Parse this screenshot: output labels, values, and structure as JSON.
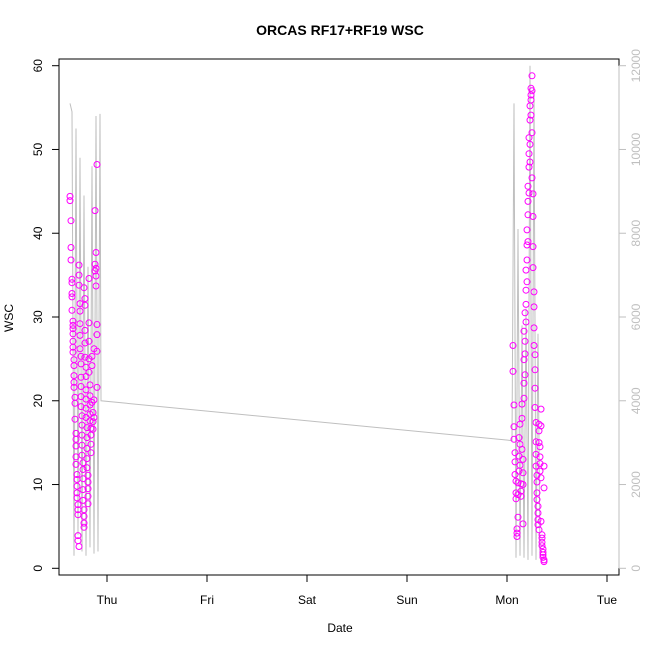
{
  "chart_data": {
    "type": "scatter",
    "title": "ORCAS RF17+RF19 WSC",
    "xlabel": "Date",
    "ylabel": "WSC",
    "x_tick_labels": [
      "Thu",
      "Fri",
      "Sat",
      "Sun",
      "Mon",
      "Tue"
    ],
    "x_tick_values": [
      0,
      1,
      2,
      3,
      4,
      5
    ],
    "xlim": [
      -0.48,
      5.12
    ],
    "ylim": [
      -0.8,
      60.8
    ],
    "y_ticks": [
      0,
      10,
      20,
      30,
      40,
      50,
      60
    ],
    "y2lim": [
      -160,
      12160
    ],
    "y2_ticks": [
      0,
      2000,
      4000,
      6000,
      8000,
      10000,
      12000
    ],
    "grid": false,
    "colors": {
      "points": "#ff00ff",
      "line": "#bfbfbf",
      "axis": "#000000"
    },
    "line_series": {
      "axis": "right",
      "x": [
        -0.37,
        -0.35,
        -0.33,
        -0.31,
        -0.29,
        -0.27,
        -0.25,
        -0.23,
        -0.21,
        -0.19,
        -0.17,
        -0.15,
        -0.13,
        -0.11,
        -0.09,
        -0.07,
        -0.06,
        4.05,
        4.07,
        4.09,
        4.11,
        4.13,
        4.15,
        4.17,
        4.19,
        4.21,
        4.23,
        4.25,
        4.27,
        4.29,
        4.31,
        4.33
      ],
      "y": [
        11100,
        10900,
        300,
        10500,
        800,
        9800,
        400,
        8900,
        300,
        7200,
        500,
        9600,
        350,
        10800,
        400,
        10850,
        4000,
        3050,
        11100,
        250,
        8100,
        300,
        5800,
        250,
        6200,
        200,
        12000,
        300,
        11400,
        200,
        5600,
        250
      ]
    },
    "series": [
      {
        "name": "RF17",
        "x": [
          -0.37,
          -0.37,
          -0.36,
          -0.36,
          -0.36,
          -0.35,
          -0.35,
          -0.35,
          -0.35,
          -0.35,
          -0.34,
          -0.34,
          -0.34,
          -0.34,
          -0.34,
          -0.34,
          -0.34,
          -0.33,
          -0.33,
          -0.33,
          -0.33,
          -0.33,
          -0.32,
          -0.32,
          -0.32,
          -0.31,
          -0.31,
          -0.31,
          -0.31,
          -0.31,
          -0.3,
          -0.3,
          -0.3,
          -0.3,
          -0.3,
          -0.29,
          -0.29,
          -0.29,
          -0.29,
          -0.29,
          -0.28,
          -0.28,
          -0.28,
          -0.28,
          -0.27,
          -0.27,
          -0.27,
          -0.27,
          -0.27,
          -0.26,
          -0.26,
          -0.26,
          -0.26,
          -0.26,
          -0.26,
          -0.25,
          -0.25,
          -0.25,
          -0.25,
          -0.25,
          -0.24,
          -0.24,
          -0.24,
          -0.24,
          -0.24,
          -0.23,
          -0.23,
          -0.23,
          -0.23,
          -0.23,
          -0.22,
          -0.22,
          -0.22,
          -0.22,
          -0.22,
          -0.21,
          -0.21,
          -0.21,
          -0.21,
          -0.21,
          -0.21,
          -0.2,
          -0.2,
          -0.2,
          -0.2,
          -0.2,
          -0.19,
          -0.19,
          -0.19,
          -0.19,
          -0.19,
          -0.18,
          -0.18,
          -0.18,
          -0.18,
          -0.18,
          -0.17,
          -0.17,
          -0.17,
          -0.17,
          -0.17,
          -0.16,
          -0.16,
          -0.16,
          -0.16,
          -0.15,
          -0.15,
          -0.15,
          -0.14,
          -0.14,
          -0.14,
          -0.13,
          -0.13,
          -0.13,
          -0.12,
          -0.12,
          -0.12,
          -0.11,
          -0.11,
          -0.11,
          -0.11,
          -0.1,
          -0.1,
          -0.1,
          -0.1,
          -0.1
        ],
        "y": [
          44.4,
          43.9,
          41.5,
          38.3,
          36.8,
          34.5,
          34.1,
          32.8,
          32.4,
          30.8,
          29.5,
          29.0,
          28.6,
          28.0,
          27.1,
          26.4,
          25.8,
          24.9,
          24.2,
          23.0,
          22.2,
          21.6,
          20.4,
          19.7,
          17.8,
          16.1,
          15.4,
          14.6,
          13.3,
          12.4,
          11.2,
          10.6,
          9.8,
          9.0,
          8.4,
          7.6,
          7.0,
          6.4,
          3.9,
          3.3,
          2.6,
          36.2,
          35.0,
          33.8,
          31.6,
          30.7,
          29.2,
          27.8,
          26.2,
          25.3,
          24.4,
          22.8,
          21.7,
          20.5,
          19.3,
          18.2,
          17.1,
          15.9,
          14.7,
          13.5,
          12.6,
          11.8,
          10.7,
          9.4,
          8.1,
          7.0,
          6.2,
          5.4,
          4.9,
          33.5,
          32.2,
          31.4,
          28.4,
          26.9,
          25.2,
          24.0,
          22.9,
          21.3,
          20.2,
          19.1,
          18.0,
          16.8,
          15.6,
          14.3,
          13.1,
          12.0,
          11.1,
          10.3,
          9.5,
          8.6,
          7.7,
          34.6,
          29.3,
          27.1,
          25.0,
          23.4,
          21.9,
          20.6,
          19.5,
          18.4,
          17.6,
          16.7,
          15.9,
          14.8,
          13.8,
          25.3,
          24.2,
          19.8,
          18.6,
          17.5,
          16.6,
          26.2,
          20.1,
          18.0,
          42.7,
          36.3,
          35.5,
          37.7,
          35.8,
          34.9,
          33.7,
          48.2,
          29.1,
          27.9,
          25.9,
          21.6
        ]
      },
      {
        "name": "RF19",
        "x": [
          4.06,
          4.06,
          4.07,
          4.07,
          4.07,
          4.08,
          4.08,
          4.08,
          4.09,
          4.09,
          4.09,
          4.1,
          4.1,
          4.1,
          4.11,
          4.11,
          4.11,
          4.12,
          4.12,
          4.12,
          4.13,
          4.13,
          4.13,
          4.14,
          4.14,
          4.14,
          4.15,
          4.15,
          4.15,
          4.16,
          4.16,
          4.16,
          4.16,
          4.17,
          4.17,
          4.17,
          4.17,
          4.18,
          4.18,
          4.18,
          4.18,
          4.19,
          4.19,
          4.19,
          4.19,
          4.2,
          4.2,
          4.2,
          4.2,
          4.21,
          4.21,
          4.21,
          4.21,
          4.22,
          4.22,
          4.22,
          4.22,
          4.23,
          4.23,
          4.23,
          4.23,
          4.24,
          4.24,
          4.24,
          4.24,
          4.25,
          4.25,
          4.25,
          4.25,
          4.26,
          4.26,
          4.26,
          4.26,
          4.27,
          4.27,
          4.27,
          4.27,
          4.28,
          4.28,
          4.28,
          4.28,
          4.29,
          4.29,
          4.29,
          4.29,
          4.3,
          4.3,
          4.3,
          4.3,
          4.31,
          4.31,
          4.31,
          4.31,
          4.32,
          4.32,
          4.32,
          4.32,
          4.33,
          4.33,
          4.33,
          4.33,
          4.34,
          4.34,
          4.34,
          4.34,
          4.35,
          4.35,
          4.35,
          4.35,
          4.36,
          4.36,
          4.36,
          4.36,
          4.37,
          4.37,
          4.37,
          4.37
        ],
        "y": [
          26.6,
          23.5,
          19.5,
          16.9,
          15.4,
          13.8,
          12.7,
          11.2,
          10.4,
          9.0,
          8.3,
          4.7,
          4.2,
          3.8,
          10.2,
          8.8,
          6.1,
          15.6,
          13.4,
          11.6,
          17.2,
          14.8,
          12.3,
          10.1,
          9.2,
          8.6,
          19.6,
          17.9,
          14.2,
          13.0,
          11.4,
          10.0,
          5.3,
          28.3,
          24.9,
          22.1,
          20.3,
          30.5,
          27.1,
          25.6,
          23.1,
          35.6,
          33.2,
          31.5,
          29.4,
          40.4,
          38.6,
          36.8,
          34.2,
          45.6,
          43.8,
          42.2,
          39.0,
          51.4,
          49.5,
          47.9,
          44.8,
          55.2,
          53.5,
          50.6,
          48.5,
          57.3,
          56.5,
          55.9,
          54.1,
          58.8,
          57.0,
          52.0,
          46.6,
          44.7,
          42.0,
          38.4,
          35.9,
          33.0,
          31.2,
          28.7,
          26.6,
          25.5,
          23.7,
          21.5,
          19.2,
          17.4,
          15.1,
          13.6,
          12.2,
          11.1,
          10.3,
          9.0,
          8.2,
          7.4,
          6.6,
          5.8,
          5.2,
          4.6,
          17.2,
          16.4,
          15.0,
          14.5,
          13.3,
          12.5,
          11.6,
          10.8,
          19.0,
          17.0,
          5.6,
          4.0,
          3.6,
          3.1,
          2.7,
          2.3,
          1.9,
          1.6,
          1.3,
          1.0,
          0.8,
          12.2,
          9.6
        ]
      }
    ]
  }
}
